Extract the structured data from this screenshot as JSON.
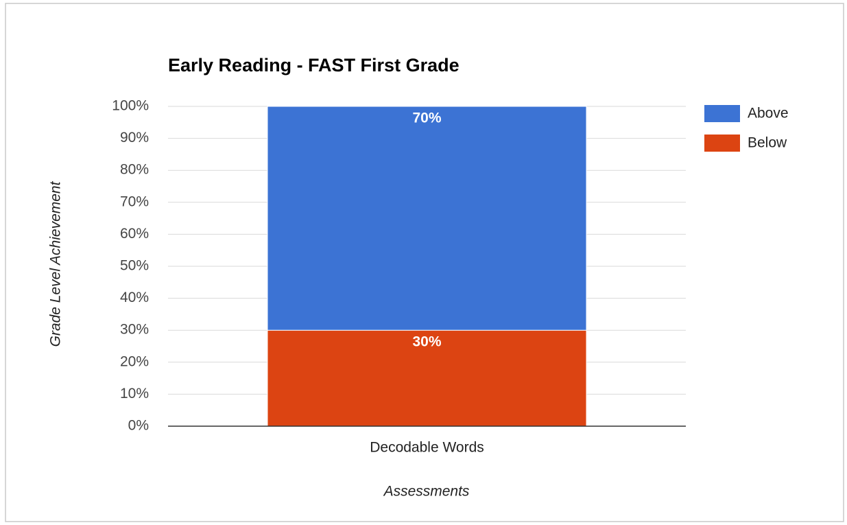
{
  "chart_data": {
    "type": "stacked_bar",
    "title": "Early Reading - FAST First Grade",
    "x_label": "Assessments",
    "y_label": "Grade Level Achievement",
    "categories": [
      "Decodable Words"
    ],
    "series": [
      {
        "name": "Above",
        "color": "#3c73d4",
        "values": [
          70
        ],
        "value_labels": [
          "70%"
        ]
      },
      {
        "name": "Below",
        "color": "#dc4412",
        "values": [
          30
        ],
        "value_labels": [
          "30%"
        ]
      }
    ],
    "ylim": [
      0,
      100
    ],
    "yticks": [
      {
        "value": 0,
        "label": "0%"
      },
      {
        "value": 10,
        "label": "10%"
      },
      {
        "value": 20,
        "label": "20%"
      },
      {
        "value": 30,
        "label": "30%"
      },
      {
        "value": 40,
        "label": "40%"
      },
      {
        "value": 50,
        "label": "50%"
      },
      {
        "value": 60,
        "label": "60%"
      },
      {
        "value": 70,
        "label": "70%"
      },
      {
        "value": 80,
        "label": "80%"
      },
      {
        "value": 90,
        "label": "90%"
      },
      {
        "value": 100,
        "label": "100%"
      }
    ],
    "grid": true,
    "legend": "right"
  }
}
